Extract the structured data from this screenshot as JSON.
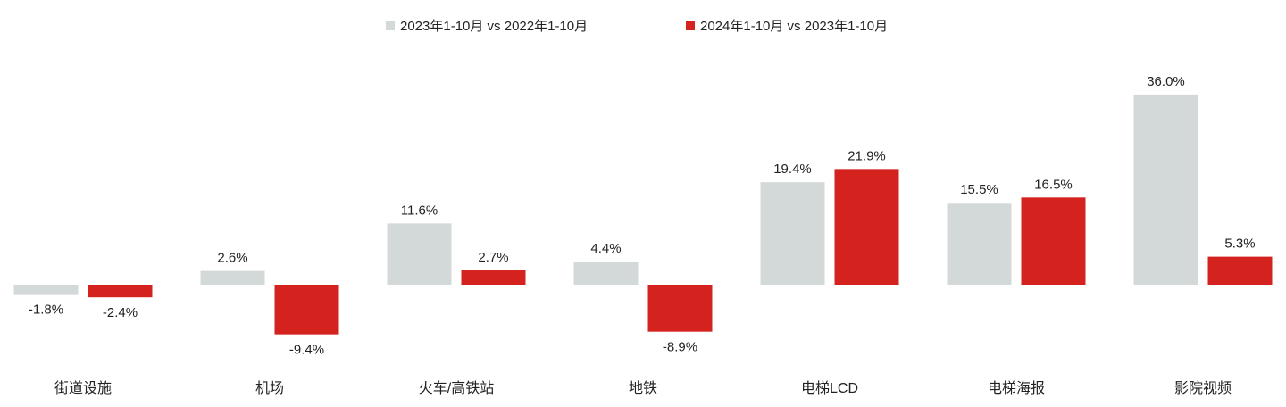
{
  "chart_data": {
    "type": "bar",
    "categories": [
      "街道设施",
      "机场",
      "火车/高铁站",
      "地铁",
      "电梯LCD",
      "电梯海报",
      "影院视频"
    ],
    "series": [
      {
        "name": "2023年1-10月 vs 2022年1-10月",
        "color": "#d3d9d9",
        "values": [
          -1.8,
          2.6,
          11.6,
          4.4,
          19.4,
          15.5,
          36.0
        ]
      },
      {
        "name": "2024年1-10月 vs 2023年1-10月",
        "color": "#d4221f",
        "values": [
          -2.4,
          -9.4,
          2.7,
          -8.9,
          21.9,
          16.5,
          5.3
        ]
      }
    ],
    "value_suffix": "%",
    "legend_position": "top",
    "grid": false
  }
}
